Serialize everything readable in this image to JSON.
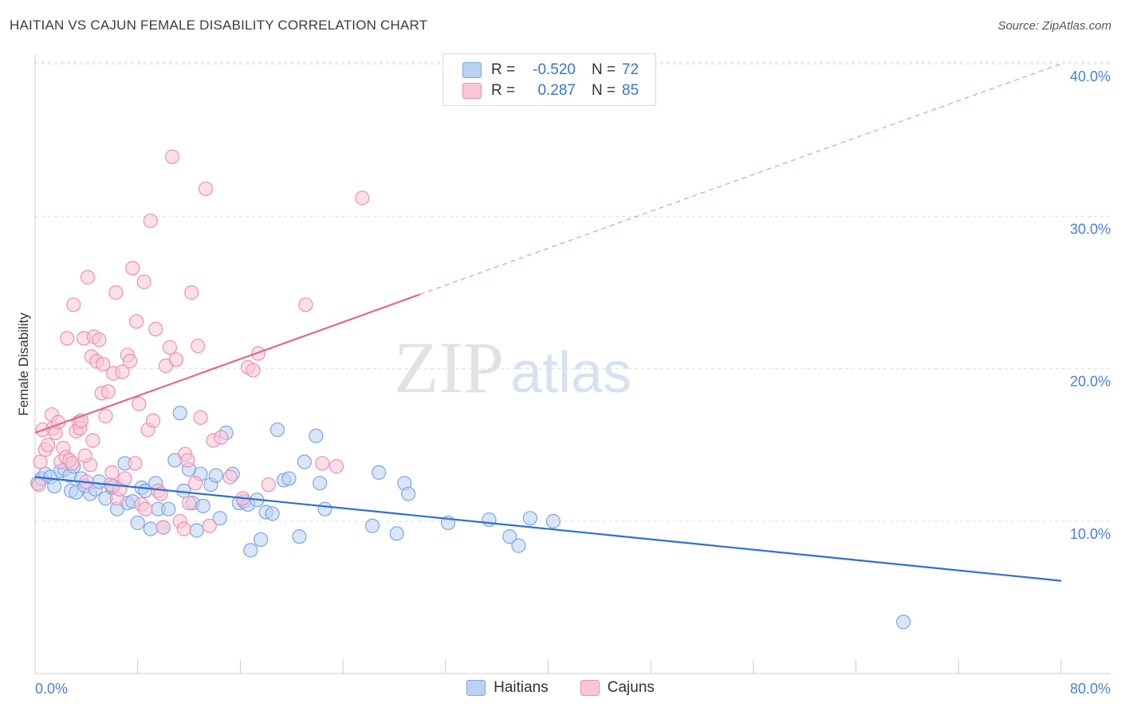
{
  "title": "HAITIAN VS CAJUN FEMALE DISABILITY CORRELATION CHART",
  "source": "Source: ZipAtlas.com",
  "watermark": {
    "zip": "ZIP",
    "atlas": "atlas"
  },
  "legend": {
    "rows": [
      {
        "r_label": "R =",
        "r_value": "-0.520",
        "n_label": "N =",
        "n_value": "72",
        "color": "#b9d2f5",
        "border": "#7aa6e3"
      },
      {
        "r_label": "R =",
        "r_value": "0.287",
        "n_label": "N =",
        "n_value": "85",
        "color": "#f9c6d6",
        "border": "#ee8fb0"
      }
    ],
    "bottom": [
      {
        "label": "Haitians",
        "color": "#b9d2f5",
        "border": "#7aa6e3"
      },
      {
        "label": "Cajuns",
        "color": "#f9c6d6",
        "border": "#ee8fb0"
      }
    ]
  },
  "chart_data": {
    "type": "scatter",
    "title": "HAITIAN VS CAJUN FEMALE DISABILITY CORRELATION CHART",
    "xlabel": "",
    "ylabel": "Female Disability",
    "xlim": [
      0,
      80
    ],
    "ylim": [
      0,
      42
    ],
    "x_tick_labels": [
      {
        "value": 0,
        "label": "0.0%"
      },
      {
        "value": 80,
        "label": "80.0%"
      }
    ],
    "x_minor_ticks": [
      8,
      16,
      24,
      32,
      40,
      48,
      56,
      64,
      72,
      80
    ],
    "y_ticks": [
      {
        "value": 10,
        "label": "10.0%"
      },
      {
        "value": 20,
        "label": "20.0%"
      },
      {
        "value": 30,
        "label": "30.0%"
      },
      {
        "value": 40,
        "label": "40.0%"
      }
    ],
    "grid": "horizontal dashed",
    "legend_position": "top-center",
    "series": [
      {
        "name": "Haitians",
        "color": "#7aa6e3",
        "fill": "#b9d2f5",
        "line_color": "#2f6fd0",
        "trend": {
          "x": [
            0,
            80
          ],
          "y": [
            12.9,
            6.1
          ],
          "dashed_from": null
        },
        "points": [
          [
            0.2,
            12.5
          ],
          [
            0.5,
            12.8
          ],
          [
            0.8,
            13.1
          ],
          [
            1.2,
            12.9
          ],
          [
            1.5,
            12.3
          ],
          [
            2.0,
            13.3
          ],
          [
            2.3,
            13.4
          ],
          [
            2.7,
            13.0
          ],
          [
            2.8,
            12.0
          ],
          [
            3.2,
            11.9
          ],
          [
            3.6,
            12.8
          ],
          [
            3.9,
            12.3
          ],
          [
            4.3,
            11.8
          ],
          [
            4.7,
            12.1
          ],
          [
            5.0,
            12.6
          ],
          [
            5.5,
            11.5
          ],
          [
            6.0,
            12.2
          ],
          [
            6.4,
            10.8
          ],
          [
            7.0,
            13.8
          ],
          [
            7.2,
            11.2
          ],
          [
            7.6,
            11.3
          ],
          [
            8.0,
            9.9
          ],
          [
            8.3,
            12.2
          ],
          [
            8.6,
            12.0
          ],
          [
            9.0,
            9.5
          ],
          [
            9.4,
            12.5
          ],
          [
            9.6,
            10.8
          ],
          [
            10.0,
            9.6
          ],
          [
            10.4,
            10.8
          ],
          [
            10.9,
            14.0
          ],
          [
            11.3,
            17.1
          ],
          [
            11.6,
            12.0
          ],
          [
            12.0,
            13.4
          ],
          [
            12.3,
            11.2
          ],
          [
            12.6,
            9.4
          ],
          [
            13.1,
            11.0
          ],
          [
            13.7,
            12.4
          ],
          [
            14.1,
            13.0
          ],
          [
            14.4,
            10.2
          ],
          [
            14.9,
            15.8
          ],
          [
            15.4,
            13.1
          ],
          [
            15.9,
            11.2
          ],
          [
            16.3,
            11.3
          ],
          [
            16.6,
            11.1
          ],
          [
            17.3,
            11.4
          ],
          [
            17.6,
            8.8
          ],
          [
            16.8,
            8.1
          ],
          [
            18.0,
            10.6
          ],
          [
            18.5,
            10.5
          ],
          [
            18.9,
            16.0
          ],
          [
            19.4,
            12.7
          ],
          [
            19.8,
            12.8
          ],
          [
            20.6,
            9.0
          ],
          [
            21.0,
            13.9
          ],
          [
            21.9,
            15.6
          ],
          [
            22.2,
            12.5
          ],
          [
            22.6,
            10.8
          ],
          [
            26.3,
            9.7
          ],
          [
            26.8,
            13.2
          ],
          [
            28.2,
            9.2
          ],
          [
            28.8,
            12.5
          ],
          [
            29.1,
            11.8
          ],
          [
            32.2,
            9.9
          ],
          [
            35.4,
            10.1
          ],
          [
            37.0,
            9.0
          ],
          [
            37.7,
            8.4
          ],
          [
            38.6,
            10.2
          ],
          [
            40.4,
            10.0
          ],
          [
            67.7,
            3.4
          ],
          [
            3.0,
            13.6
          ],
          [
            6.1,
            12.3
          ],
          [
            12.9,
            13.1
          ]
        ]
      },
      {
        "name": "Cajuns",
        "color": "#ee8fb0",
        "fill": "#f9c6d6",
        "line_color": "#e06892",
        "trend": {
          "x": [
            0,
            80
          ],
          "y": [
            15.8,
            40.0
          ],
          "dashed_from": 30
        },
        "points": [
          [
            0.3,
            12.4
          ],
          [
            0.4,
            13.9
          ],
          [
            0.6,
            16.0
          ],
          [
            0.8,
            14.7
          ],
          [
            1.0,
            15.0
          ],
          [
            1.3,
            17.0
          ],
          [
            1.4,
            16.1
          ],
          [
            1.6,
            15.8
          ],
          [
            1.8,
            16.5
          ],
          [
            2.0,
            13.9
          ],
          [
            2.2,
            14.8
          ],
          [
            2.4,
            14.2
          ],
          [
            2.5,
            22.0
          ],
          [
            2.7,
            14.0
          ],
          [
            2.9,
            13.8
          ],
          [
            3.0,
            24.2
          ],
          [
            3.2,
            15.9
          ],
          [
            3.4,
            16.5
          ],
          [
            3.5,
            16.1
          ],
          [
            3.6,
            16.6
          ],
          [
            3.8,
            22.0
          ],
          [
            4.0,
            12.6
          ],
          [
            4.1,
            26.0
          ],
          [
            4.3,
            13.7
          ],
          [
            4.4,
            20.8
          ],
          [
            4.5,
            15.3
          ],
          [
            4.6,
            22.1
          ],
          [
            4.8,
            20.5
          ],
          [
            5.0,
            21.9
          ],
          [
            5.2,
            18.4
          ],
          [
            5.3,
            20.3
          ],
          [
            5.5,
            16.9
          ],
          [
            5.7,
            18.5
          ],
          [
            5.9,
            12.4
          ],
          [
            6.1,
            19.7
          ],
          [
            6.3,
            25.0
          ],
          [
            6.4,
            11.5
          ],
          [
            6.6,
            12.1
          ],
          [
            6.8,
            19.8
          ],
          [
            7.0,
            12.8
          ],
          [
            7.2,
            20.9
          ],
          [
            7.4,
            20.5
          ],
          [
            7.6,
            26.6
          ],
          [
            7.8,
            13.8
          ],
          [
            7.9,
            23.1
          ],
          [
            8.1,
            17.7
          ],
          [
            8.3,
            11.1
          ],
          [
            8.5,
            25.7
          ],
          [
            8.6,
            10.8
          ],
          [
            8.8,
            16.0
          ],
          [
            9.0,
            29.7
          ],
          [
            9.2,
            16.6
          ],
          [
            9.4,
            22.6
          ],
          [
            9.6,
            12.0
          ],
          [
            9.8,
            11.8
          ],
          [
            10.0,
            9.6
          ],
          [
            10.2,
            20.2
          ],
          [
            10.5,
            21.4
          ],
          [
            10.7,
            33.9
          ],
          [
            11.0,
            20.6
          ],
          [
            11.3,
            10.0
          ],
          [
            11.6,
            9.5
          ],
          [
            11.7,
            14.4
          ],
          [
            11.9,
            14.0
          ],
          [
            12.0,
            11.2
          ],
          [
            12.2,
            25.0
          ],
          [
            12.5,
            12.5
          ],
          [
            12.7,
            21.5
          ],
          [
            12.9,
            16.8
          ],
          [
            13.3,
            31.8
          ],
          [
            13.6,
            9.7
          ],
          [
            13.9,
            15.3
          ],
          [
            14.5,
            15.5
          ],
          [
            15.2,
            12.9
          ],
          [
            16.2,
            11.5
          ],
          [
            16.6,
            20.1
          ],
          [
            17.0,
            19.9
          ],
          [
            17.4,
            21.0
          ],
          [
            18.2,
            12.4
          ],
          [
            21.1,
            24.2
          ],
          [
            22.4,
            13.8
          ],
          [
            23.5,
            13.6
          ],
          [
            25.5,
            31.2
          ],
          [
            3.9,
            14.3
          ],
          [
            6.0,
            13.2
          ]
        ]
      }
    ]
  }
}
